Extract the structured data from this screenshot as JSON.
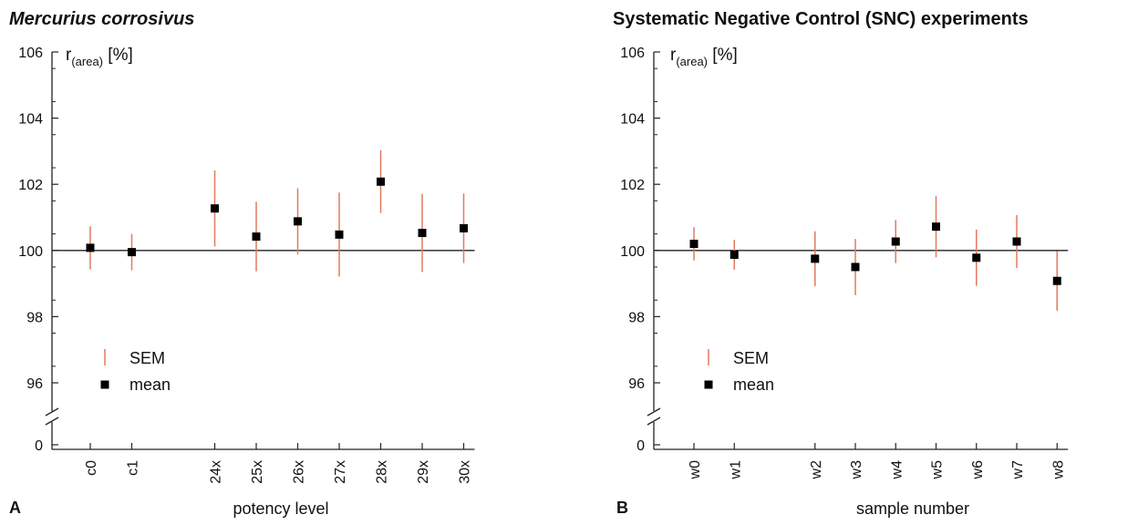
{
  "chart_data": [
    {
      "type": "scatter",
      "panel_letter": "A",
      "title": "Mercurius corrosivus",
      "title_style": "bold italic",
      "ylabel_main": "r",
      "ylabel_sub": "(area)",
      "ylabel_unit": "[%]",
      "xlabel": "potency level",
      "yticks": [
        "106",
        "104",
        "102",
        "100",
        "98",
        "96",
        "0"
      ],
      "ylim": [
        95,
        106
      ],
      "axis_break": true,
      "reference_line_y": 100,
      "categories": [
        "c0",
        "c1",
        "24x",
        "25x",
        "26x",
        "27x",
        "28x",
        "29x",
        "30x"
      ],
      "category_slots": [
        0,
        1,
        3,
        4,
        5,
        6,
        7,
        8,
        9
      ],
      "series": [
        {
          "name": "mean",
          "marker": "square",
          "color": "#000000",
          "values": [
            100.08,
            99.95,
            101.27,
            100.42,
            100.88,
            100.48,
            102.08,
            100.53,
            100.67
          ]
        },
        {
          "name": "SEM",
          "marker": "vertical-bar",
          "color": "#e07a5f",
          "values": [
            0.65,
            0.55,
            1.15,
            1.05,
            1.0,
            1.27,
            0.95,
            1.18,
            1.05
          ]
        }
      ],
      "legend": {
        "position": "bottom-left",
        "entries": [
          "SEM",
          "mean"
        ]
      }
    },
    {
      "type": "scatter",
      "panel_letter": "B",
      "title": "Systematic Negative Control (SNC) experiments",
      "title_style": "bold",
      "ylabel_main": "r",
      "ylabel_sub": "(area)",
      "ylabel_unit": "[%]",
      "xlabel": "sample number",
      "yticks": [
        "106",
        "104",
        "102",
        "100",
        "98",
        "96",
        "0"
      ],
      "ylim": [
        95,
        106
      ],
      "axis_break": true,
      "reference_line_y": 100,
      "categories": [
        "w0",
        "w1",
        "w2",
        "w3",
        "w4",
        "w5",
        "w6",
        "w7",
        "w8"
      ],
      "category_slots": [
        0,
        1,
        3,
        4,
        5,
        6,
        7,
        8,
        9
      ],
      "series": [
        {
          "name": "mean",
          "marker": "square",
          "color": "#000000",
          "values": [
            100.2,
            99.87,
            99.75,
            99.5,
            100.27,
            100.72,
            99.78,
            100.27,
            99.08
          ]
        },
        {
          "name": "SEM",
          "marker": "vertical-bar",
          "color": "#e07a5f",
          "values": [
            0.5,
            0.45,
            0.83,
            0.85,
            0.65,
            0.93,
            0.85,
            0.8,
            0.9
          ]
        }
      ],
      "legend": {
        "position": "bottom-left",
        "entries": [
          "SEM",
          "mean"
        ]
      }
    }
  ]
}
